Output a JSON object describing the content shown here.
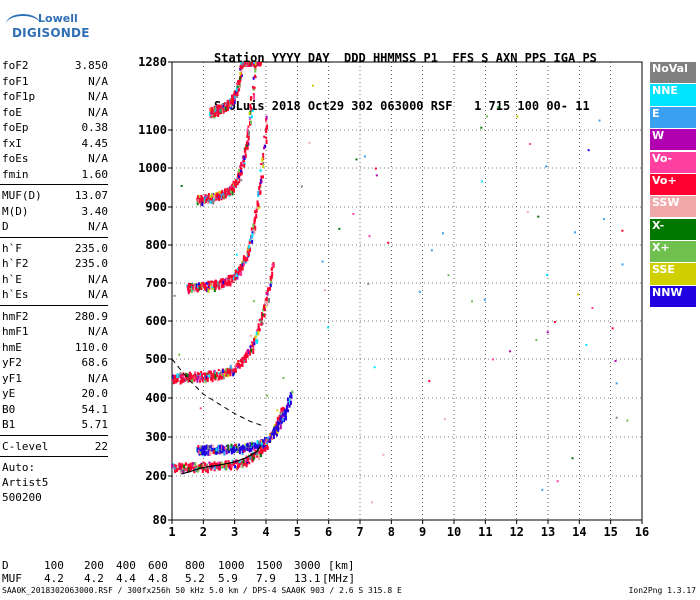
{
  "logo": {
    "line1": "Lowell",
    "line2": "DIGISONDE"
  },
  "header": {
    "line1": "Station YYYY DAY  DDD HHMMSS P1  FFS S AXN PPS IGA PS",
    "line2": "SaoLuis 2018 Oct29 302 063000 RSF   1 715 100 00- 11"
  },
  "params": {
    "group1": [
      {
        "label": "foF2",
        "value": "3.850"
      },
      {
        "label": "foF1",
        "value": "N/A"
      },
      {
        "label": "foF1p",
        "value": "N/A"
      },
      {
        "label": "foE",
        "value": "N/A"
      },
      {
        "label": "foEp",
        "value": "0.38"
      },
      {
        "label": "fxI",
        "value": "4.45"
      },
      {
        "label": "foEs",
        "value": "N/A"
      },
      {
        "label": "fmin",
        "value": "1.60"
      }
    ],
    "group2": [
      {
        "label": "MUF(D)",
        "value": "13.07"
      },
      {
        "label": "M(D)",
        "value": "3.40"
      },
      {
        "label": "D",
        "value": "N/A"
      }
    ],
    "group3": [
      {
        "label": "h`F",
        "value": "235.0"
      },
      {
        "label": "h`F2",
        "value": "235.0"
      },
      {
        "label": "h`E",
        "value": "N/A"
      },
      {
        "label": "h`Es",
        "value": "N/A"
      }
    ],
    "group4": [
      {
        "label": "hmF2",
        "value": "280.9"
      },
      {
        "label": "hmF1",
        "value": "N/A"
      },
      {
        "label": "hmE",
        "value": "110.0"
      },
      {
        "label": "yF2",
        "value": "68.6"
      },
      {
        "label": "yF1",
        "value": "N/A"
      },
      {
        "label": "yE",
        "value": "20.0"
      },
      {
        "label": "B0",
        "value": "54.1"
      },
      {
        "label": "B1",
        "value": "5.71"
      }
    ],
    "clevel": {
      "label": "C-level",
      "value": "22"
    },
    "auto": [
      "Auto:",
      "Artist5",
      "500200"
    ]
  },
  "legend": [
    {
      "label": "NoVal",
      "color": "#808080"
    },
    {
      "label": "NNE",
      "color": "#00e5ff"
    },
    {
      "label": "E",
      "color": "#3aa0f0"
    },
    {
      "label": "W",
      "color": "#b000b0"
    },
    {
      "label": "Vo-",
      "color": "#ff40a0"
    },
    {
      "label": "Vo+",
      "color": "#ff0030"
    },
    {
      "label": "SSW",
      "color": "#f0a8a8"
    },
    {
      "label": "X-",
      "color": "#007800"
    },
    {
      "label": "X+",
      "color": "#70c050"
    },
    {
      "label": "SSE",
      "color": "#d0d000"
    },
    {
      "label": "NNW",
      "color": "#2000e0"
    }
  ],
  "muf_table": {
    "d_label": "D",
    "muf_label": "MUF",
    "d_values": [
      "100",
      "200",
      "400",
      "600",
      "800",
      "1000",
      "1500",
      "3000"
    ],
    "muf_values": [
      "4.2",
      "4.2",
      "4.4",
      "4.8",
      "5.2",
      "5.9",
      "7.9",
      "13.1"
    ],
    "d_unit": "[km]",
    "muf_unit": "[MHz]"
  },
  "footer": {
    "left": "SAA0K_2018302063000.RSF / 300fx256h 50 kHz 5.0 km / DPS-4 SAA0K 903 / 2.6 S 315.8 E",
    "right": "Ion2Png 1.3.17"
  },
  "chart_data": {
    "type": "scatter",
    "title": "",
    "xlabel": "",
    "ylabel": "",
    "xlim": [
      1,
      16
    ],
    "ylim": [
      80,
      1280
    ],
    "x_ticks": [
      1,
      2,
      3,
      4,
      5,
      6,
      7,
      8,
      9,
      10,
      11,
      12,
      13,
      14,
      15,
      16
    ],
    "y_ticks": [
      80,
      200,
      300,
      400,
      500,
      600,
      700,
      800,
      900,
      1000,
      1100,
      1280
    ],
    "y_scale": "nonlinear",
    "grid": "dotted",
    "legend_position": "right",
    "series": [
      {
        "color": "#ff0030",
        "traces": [
          {
            "h0": 225,
            "f0": 1.0,
            "f1": 4.5
          },
          {
            "h0": 455,
            "f0": 1.0,
            "f1": 4.2
          },
          {
            "h0": 690,
            "f0": 1.5,
            "f1": 4.0
          },
          {
            "h0": 920,
            "f0": 1.8,
            "f1": 3.8
          },
          {
            "h0": 1150,
            "f0": 2.2,
            "f1": 3.6
          }
        ]
      },
      {
        "color": "#2000e0",
        "traces": [
          {
            "h0": 270,
            "f0": 1.8,
            "f1": 4.8
          }
        ]
      }
    ],
    "profile_curve": {
      "x": [
        1.3,
        1.6,
        2.0,
        2.5,
        3.0,
        3.4,
        3.7,
        3.85
      ],
      "y": [
        205,
        212,
        222,
        228,
        236,
        248,
        262,
        280
      ]
    },
    "dashed_curve": {
      "x": [
        1.0,
        1.5,
        2.0,
        2.5,
        3.0,
        3.5,
        3.85
      ],
      "y": [
        500,
        450,
        410,
        385,
        360,
        340,
        330
      ]
    }
  }
}
